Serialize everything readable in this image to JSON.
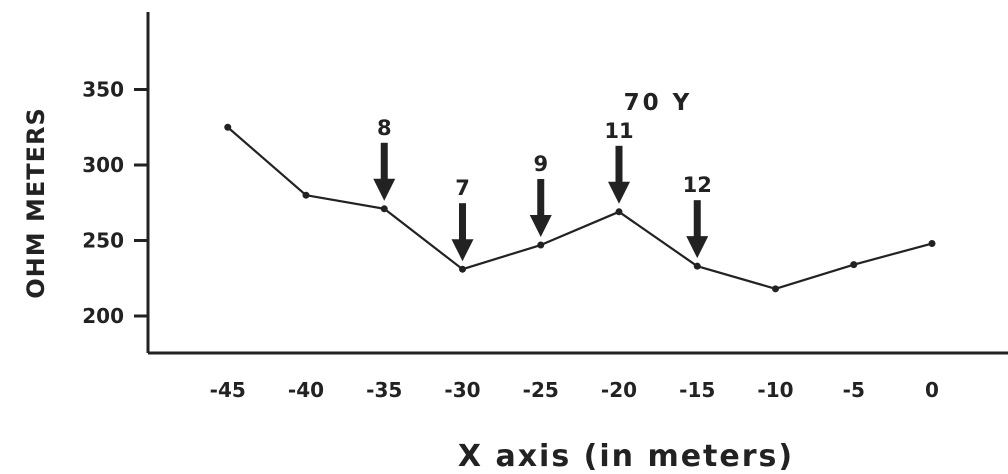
{
  "chart_data": {
    "type": "line",
    "title": "",
    "annotation": "70 Y",
    "xlabel": "X axis (in meters)",
    "ylabel": "OHM METERS",
    "xlim": [
      -50,
      2
    ],
    "ylim": [
      175,
      400
    ],
    "x_ticks": [
      "-45",
      "-40",
      "-35",
      "-30",
      "-25",
      "-20",
      "-15",
      "-10",
      "-5",
      "0"
    ],
    "y_ticks": [
      "350",
      "300",
      "250",
      "200"
    ],
    "grid": false,
    "series": [
      {
        "x": [
          -45,
          -40,
          -35,
          -30,
          -25,
          -20,
          -15,
          -10,
          -5,
          0
        ],
        "y": [
          325,
          280,
          271,
          231,
          247,
          269,
          233,
          218,
          234,
          248
        ]
      }
    ],
    "arrows": [
      {
        "label": "8",
        "x": -35
      },
      {
        "label": "7",
        "x": -30
      },
      {
        "label": "9",
        "x": -25
      },
      {
        "label": "11",
        "x": -20
      },
      {
        "label": "12",
        "x": -15
      }
    ]
  }
}
